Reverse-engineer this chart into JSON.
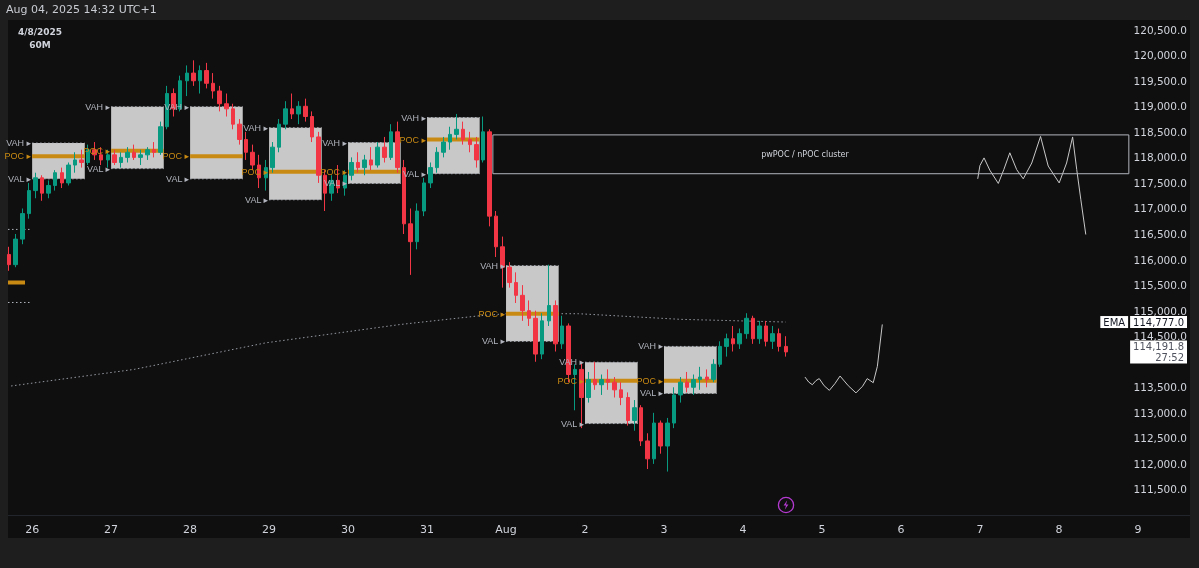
{
  "chart_data": {
    "type": "candlestick",
    "x": [
      "2025-07-25T17:00",
      "2025-07-25T19:00",
      "2025-07-25T21:00",
      "2025-07-25T23:00",
      "2025-07-26T01:00",
      "2025-07-26T03:00",
      "2025-07-26T05:00",
      "2025-07-26T07:00",
      "2025-07-26T09:00",
      "2025-07-26T11:00",
      "2025-07-26T13:00",
      "2025-07-26T15:00",
      "2025-07-26T17:00",
      "2025-07-26T19:00",
      "2025-07-26T21:00",
      "2025-07-26T23:00",
      "2025-07-27T01:00",
      "2025-07-27T03:00",
      "2025-07-27T05:00",
      "2025-07-27T07:00",
      "2025-07-27T09:00",
      "2025-07-27T11:00",
      "2025-07-27T13:00",
      "2025-07-27T15:00",
      "2025-07-27T17:00",
      "2025-07-27T19:00",
      "2025-07-27T21:00",
      "2025-07-27T23:00",
      "2025-07-28T01:00",
      "2025-07-28T03:00",
      "2025-07-28T05:00",
      "2025-07-28T07:00",
      "2025-07-28T09:00",
      "2025-07-28T11:00",
      "2025-07-28T13:00",
      "2025-07-28T15:00",
      "2025-07-28T17:00",
      "2025-07-28T19:00",
      "2025-07-28T21:00",
      "2025-07-28T23:00",
      "2025-07-29T01:00",
      "2025-07-29T03:00",
      "2025-07-29T05:00",
      "2025-07-29T07:00",
      "2025-07-29T09:00",
      "2025-07-29T11:00",
      "2025-07-29T13:00",
      "2025-07-29T15:00",
      "2025-07-29T17:00",
      "2025-07-29T19:00",
      "2025-07-29T21:00",
      "2025-07-29T23:00",
      "2025-07-30T01:00",
      "2025-07-30T03:00",
      "2025-07-30T05:00",
      "2025-07-30T07:00",
      "2025-07-30T09:00",
      "2025-07-30T11:00",
      "2025-07-30T13:00",
      "2025-07-30T15:00",
      "2025-07-30T17:00",
      "2025-07-30T19:00",
      "2025-07-30T21:00",
      "2025-07-30T23:00",
      "2025-07-31T01:00",
      "2025-07-31T03:00",
      "2025-07-31T05:00",
      "2025-07-31T07:00",
      "2025-07-31T09:00",
      "2025-07-31T11:00",
      "2025-07-31T13:00",
      "2025-07-31T15:00",
      "2025-07-31T17:00",
      "2025-07-31T19:00",
      "2025-07-31T21:00",
      "2025-07-31T23:00",
      "2025-08-01T01:00",
      "2025-08-01T03:00",
      "2025-08-01T05:00",
      "2025-08-01T07:00",
      "2025-08-01T09:00",
      "2025-08-01T11:00",
      "2025-08-01T13:00",
      "2025-08-01T15:00",
      "2025-08-01T17:00",
      "2025-08-01T19:00",
      "2025-08-01T21:00",
      "2025-08-01T23:00",
      "2025-08-02T01:00",
      "2025-08-02T03:00",
      "2025-08-02T05:00",
      "2025-08-02T07:00",
      "2025-08-02T09:00",
      "2025-08-02T11:00",
      "2025-08-02T13:00",
      "2025-08-02T15:00",
      "2025-08-02T17:00",
      "2025-08-02T19:00",
      "2025-08-02T21:00",
      "2025-08-02T23:00",
      "2025-08-03T01:00",
      "2025-08-03T03:00",
      "2025-08-03T05:00",
      "2025-08-03T07:00",
      "2025-08-03T09:00",
      "2025-08-03T11:00",
      "2025-08-03T13:00",
      "2025-08-03T15:00",
      "2025-08-03T17:00",
      "2025-08-03T19:00",
      "2025-08-03T21:00",
      "2025-08-03T23:00",
      "2025-08-04T01:00",
      "2025-08-04T03:00",
      "2025-08-04T05:00",
      "2025-08-04T07:00",
      "2025-08-04T09:00",
      "2025-08-04T11:00",
      "2025-08-04T13:00"
    ],
    "ohlc": [
      [
        116100,
        116250,
        115780,
        115900
      ],
      [
        115900,
        116500,
        115850,
        116400
      ],
      [
        116400,
        117000,
        116300,
        116900
      ],
      [
        116900,
        117500,
        116800,
        117350
      ],
      [
        117350,
        117700,
        117200,
        117600
      ],
      [
        117600,
        117650,
        117150,
        117300
      ],
      [
        117300,
        117550,
        117200,
        117450
      ],
      [
        117450,
        117750,
        117350,
        117700
      ],
      [
        117700,
        117800,
        117400,
        117500
      ],
      [
        117500,
        117900,
        117450,
        117850
      ],
      [
        117850,
        118100,
        117700,
        117950
      ],
      [
        117950,
        118150,
        117800,
        117900
      ],
      [
        117900,
        118250,
        117850,
        118150
      ],
      [
        118150,
        118300,
        117950,
        118050
      ],
      [
        118050,
        118200,
        117850,
        117950
      ],
      [
        117950,
        118150,
        117800,
        118050
      ],
      [
        118050,
        118150,
        117850,
        117900
      ],
      [
        117900,
        118100,
        117800,
        118000
      ],
      [
        118000,
        118200,
        117900,
        118100
      ],
      [
        118100,
        118250,
        117950,
        118000
      ],
      [
        118000,
        118150,
        117850,
        118050
      ],
      [
        118050,
        118200,
        117950,
        118150
      ],
      [
        118150,
        118300,
        118000,
        118100
      ],
      [
        118100,
        118700,
        118050,
        118600
      ],
      [
        118600,
        119400,
        118550,
        119250
      ],
      [
        119250,
        119350,
        118800,
        118950
      ],
      [
        118950,
        119600,
        118900,
        119500
      ],
      [
        119500,
        119800,
        119200,
        119650
      ],
      [
        119650,
        119900,
        119400,
        119500
      ],
      [
        119500,
        119800,
        119250,
        119700
      ],
      [
        119700,
        119850,
        119350,
        119450
      ],
      [
        119450,
        119650,
        119150,
        119300
      ],
      [
        119300,
        119400,
        118900,
        119050
      ],
      [
        119050,
        119250,
        118800,
        118950
      ],
      [
        118950,
        119050,
        118550,
        118650
      ],
      [
        118650,
        118750,
        118250,
        118350
      ],
      [
        118350,
        118500,
        117950,
        118100
      ],
      [
        118100,
        118250,
        117750,
        117850
      ],
      [
        117850,
        118050,
        117400,
        117600
      ],
      [
        117600,
        117950,
        117350,
        117800
      ],
      [
        117800,
        118300,
        117700,
        118200
      ],
      [
        118200,
        118750,
        118100,
        118650
      ],
      [
        118650,
        119100,
        118550,
        118950
      ],
      [
        118950,
        119250,
        118750,
        118850
      ],
      [
        118850,
        119100,
        118650,
        119000
      ],
      [
        119000,
        119150,
        118700,
        118800
      ],
      [
        118800,
        118900,
        118300,
        118400
      ],
      [
        118400,
        118500,
        117500,
        117650
      ],
      [
        117650,
        117750,
        116950,
        117300
      ],
      [
        117300,
        117650,
        117150,
        117550
      ],
      [
        117550,
        117850,
        117300,
        117400
      ],
      [
        117400,
        117750,
        117250,
        117650
      ],
      [
        117650,
        118000,
        117550,
        117900
      ],
      [
        117900,
        118100,
        117700,
        117800
      ],
      [
        117800,
        118050,
        117650,
        117950
      ],
      [
        117950,
        118200,
        117750,
        117850
      ],
      [
        117850,
        118300,
        117800,
        118200
      ],
      [
        118200,
        118400,
        117900,
        118000
      ],
      [
        118000,
        118650,
        117950,
        118500
      ],
      [
        118500,
        118700,
        117700,
        117800
      ],
      [
        117800,
        117950,
        116500,
        116700
      ],
      [
        116700,
        117000,
        115700,
        116350
      ],
      [
        116350,
        117100,
        116200,
        116950
      ],
      [
        116950,
        117600,
        116850,
        117500
      ],
      [
        117500,
        117900,
        117400,
        117800
      ],
      [
        117800,
        118200,
        117700,
        118100
      ],
      [
        118100,
        118400,
        118000,
        118300
      ],
      [
        118300,
        118600,
        118150,
        118450
      ],
      [
        118450,
        118850,
        118350,
        118550
      ],
      [
        118550,
        118700,
        118250,
        118350
      ],
      [
        118350,
        118500,
        118100,
        118250
      ],
      [
        118250,
        118400,
        117800,
        117950
      ],
      [
        117950,
        118800,
        117900,
        118500
      ],
      [
        118500,
        118550,
        116650,
        116850
      ],
      [
        116850,
        116950,
        116050,
        116250
      ],
      [
        116250,
        116450,
        115450,
        115850
      ],
      [
        115850,
        115950,
        115450,
        115550
      ],
      [
        115550,
        115750,
        115150,
        115300
      ],
      [
        115300,
        115500,
        114800,
        115000
      ],
      [
        115000,
        115200,
        114700,
        114850
      ],
      [
        114850,
        115000,
        114000,
        114150
      ],
      [
        114150,
        114950,
        114050,
        114800
      ],
      [
        114800,
        115900,
        114700,
        115100
      ],
      [
        115100,
        115200,
        114200,
        114350
      ],
      [
        114350,
        114900,
        114250,
        114700
      ],
      [
        114700,
        114750,
        113600,
        113750
      ],
      [
        113750,
        113950,
        113050,
        113850
      ],
      [
        113850,
        114000,
        112700,
        113300
      ],
      [
        113300,
        113800,
        113200,
        113650
      ],
      [
        113650,
        114000,
        113450,
        113550
      ],
      [
        113550,
        113750,
        113350,
        113650
      ],
      [
        113650,
        113850,
        113450,
        113600
      ],
      [
        113600,
        113700,
        113300,
        113450
      ],
      [
        113450,
        113600,
        113150,
        113300
      ],
      [
        113300,
        113400,
        112750,
        112850
      ],
      [
        112850,
        113250,
        112650,
        113100
      ],
      [
        113100,
        113150,
        112350,
        112450
      ],
      [
        112450,
        112600,
        111900,
        112100
      ],
      [
        112100,
        113000,
        112000,
        112800
      ],
      [
        112800,
        112850,
        112200,
        112350
      ],
      [
        112350,
        112900,
        111850,
        112800
      ],
      [
        112800,
        113500,
        112700,
        113350
      ],
      [
        113350,
        113700,
        113200,
        113600
      ],
      [
        113600,
        113800,
        113400,
        113500
      ],
      [
        113500,
        113750,
        113350,
        113650
      ],
      [
        113650,
        113900,
        113450,
        113700
      ],
      [
        113700,
        113850,
        113500,
        113650
      ],
      [
        113650,
        114050,
        113600,
        113950
      ],
      [
        113950,
        114400,
        113900,
        114300
      ],
      [
        114300,
        114550,
        114100,
        114450
      ],
      [
        114450,
        114700,
        114200,
        114350
      ],
      [
        114350,
        114650,
        114250,
        114550
      ],
      [
        114550,
        114950,
        114450,
        114850
      ],
      [
        114850,
        114900,
        114350,
        114450
      ],
      [
        114450,
        114800,
        114350,
        114700
      ],
      [
        114700,
        114800,
        114300,
        114400
      ],
      [
        114400,
        114700,
        114250,
        114550
      ],
      [
        114550,
        114650,
        114200,
        114300
      ],
      [
        114300,
        114500,
        114100,
        114191.8
      ]
    ],
    "colors": [
      "#f23645",
      "#089981",
      "#089981",
      "#089981",
      "#089981",
      "#f23645",
      "#089981",
      "#089981",
      "#f23645",
      "#089981",
      "#089981",
      "#f23645",
      "#089981",
      "#f23645",
      "#f23645",
      "#089981",
      "#f23645",
      "#089981",
      "#089981",
      "#f23645",
      "#089981",
      "#089981",
      "#f23645",
      "#089981",
      "#089981",
      "#f23645",
      "#089981",
      "#089981",
      "#f23645",
      "#089981",
      "#f23645",
      "#f23645",
      "#f23645",
      "#f23645",
      "#f23645",
      "#f23645",
      "#f23645",
      "#f23645",
      "#f23645",
      "#089981",
      "#089981",
      "#089981",
      "#089981",
      "#f23645",
      "#089981",
      "#f23645",
      "#f23645",
      "#f23645",
      "#f23645",
      "#089981",
      "#f23645",
      "#089981",
      "#089981",
      "#f23645",
      "#089981",
      "#f23645",
      "#089981",
      "#f23645",
      "#089981",
      "#f23645",
      "#f23645",
      "#f23645",
      "#089981",
      "#089981",
      "#089981",
      "#089981",
      "#089981",
      "#089981",
      "#089981",
      "#f23645",
      "#f23645",
      "#f23645",
      "#089981",
      "#f23645",
      "#f23645",
      "#f23645",
      "#f23645",
      "#f23645",
      "#f23645",
      "#f23645",
      "#f23645",
      "#089981",
      "#089981",
      "#f23645",
      "#089981",
      "#f23645",
      "#089981",
      "#f23645",
      "#089981",
      "#f23645",
      "#089981",
      "#f23645",
      "#f23645",
      "#f23645",
      "#f23645",
      "#089981",
      "#f23645",
      "#f23645",
      "#089981",
      "#f23645",
      "#089981",
      "#089981",
      "#089981",
      "#f23645",
      "#089981",
      "#089981",
      "#f23645",
      "#089981",
      "#089981",
      "#089981",
      "#f23645",
      "#089981",
      "#089981",
      "#f23645",
      "#089981",
      "#f23645",
      "#089981",
      "#f23645",
      "#f23645"
    ],
    "xlim": [
      "2025-07-25T16:40",
      "2025-08-09T15:50"
    ],
    "xticks": [
      {
        "value": "2025-07-26",
        "label": "26"
      },
      {
        "value": "2025-07-27",
        "label": "27"
      },
      {
        "value": "2025-07-28",
        "label": "28"
      },
      {
        "value": "2025-07-29",
        "label": "29"
      },
      {
        "value": "2025-07-30",
        "label": "30"
      },
      {
        "value": "2025-07-31",
        "label": "31"
      },
      {
        "value": "2025-08-01",
        "label": "Aug"
      },
      {
        "value": "2025-08-02",
        "label": "2"
      },
      {
        "value": "2025-08-03",
        "label": "3"
      },
      {
        "value": "2025-08-04",
        "label": "4"
      },
      {
        "value": "2025-08-05",
        "label": "5"
      },
      {
        "value": "2025-08-06",
        "label": "6"
      },
      {
        "value": "2025-08-07",
        "label": "7"
      },
      {
        "value": "2025-08-08",
        "label": "8"
      },
      {
        "value": "2025-08-09",
        "label": "9"
      }
    ],
    "ylim": [
      111000,
      120650
    ],
    "yticks": [
      {
        "value": 111500,
        "label": "111,500.0"
      },
      {
        "value": 112000,
        "label": "112,000.0"
      },
      {
        "value": 112500,
        "label": "112,500.0"
      },
      {
        "value": 113000,
        "label": "113,000.0"
      },
      {
        "value": 113500,
        "label": "113,500.0"
      },
      {
        "value": 114191.8,
        "label": "114,191.8\n27:52"
      },
      {
        "value": 114500,
        "label": "114,500.0"
      },
      {
        "value": 114777,
        "label": "114,777.0"
      },
      {
        "value": 115000,
        "label": "115,000.0"
      },
      {
        "value": 115500,
        "label": "115,500.0"
      },
      {
        "value": 116000,
        "label": "116,000.0"
      },
      {
        "value": 116500,
        "label": "116,500.0"
      },
      {
        "value": 117000,
        "label": "117,000.0"
      },
      {
        "value": 117500,
        "label": "117,500.0"
      },
      {
        "value": 118000,
        "label": "118,000.0"
      },
      {
        "value": 118500,
        "label": "118,500.0"
      },
      {
        "value": 119000,
        "label": "119,000.0"
      },
      {
        "value": 119500,
        "label": "119,500.0"
      },
      {
        "value": 120000,
        "label": "120,000.0"
      },
      {
        "value": 120500,
        "label": "120,500.0"
      }
    ],
    "marker": "none",
    "series": [
      {
        "type": "line",
        "name": "EMA",
        "color": "#9598a1",
        "line_style": "dotted",
        "x": [
          "2025-07-25T17:00",
          "2025-07-27T07:00",
          "2025-07-28T23:00",
          "2025-07-30T16:00",
          "2025-07-31T16:00",
          "2025-08-01T00:00",
          "2025-08-01T22:00",
          "2025-08-03T05:00",
          "2025-08-04T13:00"
        ],
        "values": [
          113520,
          113850,
          114370,
          114730,
          114900,
          114940,
          114940,
          114830,
          114777
        ]
      },
      {
        "type": "line",
        "color": "#c8c8c8",
        "line_style": "solid",
        "x": [
          "2025-08-04T18:50",
          "2025-08-04T20:00",
          "2025-08-04T21:05",
          "2025-08-04T22:10",
          "2025-08-04T23:10",
          "2025-08-05T00:40",
          "2025-08-05T02:15",
          "2025-08-05T03:55",
          "2025-08-05T05:30",
          "2025-08-05T08:00",
          "2025-08-05T10:20",
          "2025-08-05T12:20",
          "2025-08-05T13:45",
          "2025-08-05T15:35",
          "2025-08-05T16:50",
          "2025-08-05T18:20"
        ],
        "values": [
          113700,
          113600,
          113550,
          113630,
          113670,
          113530,
          113440,
          113570,
          113720,
          113530,
          113390,
          113520,
          113670,
          113590,
          113910,
          114730
        ]
      },
      {
        "type": "line",
        "color": "#c8c8c8",
        "line_style": "solid",
        "x": [
          "2025-08-06T23:20",
          "2025-08-07T00:00",
          "2025-08-07T01:15",
          "2025-08-07T03:00",
          "2025-08-07T05:35",
          "2025-08-07T07:15",
          "2025-08-07T09:05",
          "2025-08-07T11:10",
          "2025-08-07T13:10",
          "2025-08-07T15:45",
          "2025-08-07T18:25",
          "2025-08-07T20:45",
          "2025-08-08T00:05",
          "2025-08-08T02:20",
          "2025-08-08T04:10",
          "2025-08-08T05:25",
          "2025-08-08T06:40",
          "2025-08-08T08:10"
        ],
        "values": [
          117580,
          117840,
          117990,
          117750,
          117490,
          117760,
          118090,
          117760,
          117580,
          117890,
          118410,
          117830,
          117500,
          117890,
          118400,
          117760,
          117170,
          116490
        ]
      },
      {
        "type": "line",
        "color": "#b2b5be",
        "line_style": "solid",
        "x": [
          "2025-07-31T20:00",
          "2025-08-08T21:15"
        ],
        "values": [
          118440,
          118440
        ]
      },
      {
        "type": "line",
        "color": "#b2b5be",
        "line_style": "solid",
        "x": [
          "2025-07-31T20:00",
          "2025-08-08T21:15"
        ],
        "values": [
          117680,
          117680
        ]
      },
      {
        "type": "line",
        "color": "#b2b5be",
        "line_style": "solid",
        "x": [
          "2025-07-31T20:00",
          "2025-07-31T20:00"
        ],
        "values": [
          117680,
          118440
        ]
      },
      {
        "type": "line",
        "color": "#b2b5be",
        "line_style": "solid",
        "x": [
          "2025-08-08T21:15",
          "2025-08-08T21:15"
        ],
        "values": [
          117680,
          118440
        ]
      },
      {
        "type": "bar",
        "color": "#c8c8c8",
        "x": [
          "2025-07-26T08:00",
          "2025-07-27T08:00",
          "2025-07-28T08:00",
          "2025-07-29T08:00",
          "2025-07-30T08:00",
          "2025-07-31T08:00",
          "2025-08-01T08:00",
          "2025-08-02T08:00",
          "2025-08-03T08:00"
        ],
        "base": [
          117580,
          117780,
          117580,
          117170,
          117490,
          117680,
          114400,
          112790,
          113380
        ],
        "values": [
          700,
          1210,
          1410,
          1410,
          800,
          1100,
          1480,
          1200,
          920
        ]
      },
      {
        "type": "line",
        "color": "#c98a13",
        "line_style": "solid",
        "x": [
          "2025-07-25T16:40",
          "2025-07-25T21:50",
          "2025-07-25T23:00",
          "2025-07-26T00:00",
          "2025-07-26T16:00",
          "2025-07-26T20:00",
          "2025-07-27T00:00",
          "2025-07-27T16:00",
          "2025-07-27T20:00",
          "2025-07-28T00:00",
          "2025-07-28T16:00",
          "2025-07-28T20:00",
          "2025-07-29T00:00",
          "2025-07-29T16:00",
          "2025-07-29T20:00",
          "2025-07-30T00:00",
          "2025-07-30T16:00",
          "2025-07-30T20:00",
          "2025-07-31T00:00",
          "2025-07-31T16:00",
          "2025-07-31T20:00",
          "2025-08-01T00:00",
          "2025-08-01T16:00",
          "2025-08-01T20:00",
          "2025-08-02T00:00",
          "2025-08-02T16:00",
          "2025-08-02T20:00",
          "2025-08-03T00:00",
          "2025-08-03T16:00"
        ],
        "values": [
          115550,
          115550,
          null,
          118020,
          118020,
          null,
          118130,
          118130,
          null,
          118020,
          118020,
          null,
          117720,
          117720,
          null,
          117720,
          117720,
          null,
          118350,
          118350,
          null,
          114940,
          114940,
          null,
          113630,
          113630,
          null,
          113630,
          113630
        ]
      },
      {
        "type": "line",
        "color": "#b2b5be",
        "line_style": "dotted",
        "x": [
          "2025-07-25T16:40",
          "2025-07-25T23:30",
          "2025-07-25T23:45",
          "2025-07-26T00:00",
          "2025-07-26T16:00",
          "2025-07-26T20:00",
          "2025-07-27T00:00",
          "2025-07-27T16:00",
          "2025-07-27T20:00",
          "2025-07-28T00:00",
          "2025-07-28T16:00",
          "2025-07-28T20:00",
          "2025-07-29T00:00",
          "2025-07-29T16:00",
          "2025-07-29T20:00",
          "2025-07-30T00:00",
          "2025-07-30T16:00",
          "2025-07-30T20:00",
          "2025-07-31T00:00",
          "2025-07-31T16:00",
          "2025-07-31T20:00",
          "2025-08-01T00:00",
          "2025-08-01T16:00",
          "2025-08-01T20:00",
          "2025-08-02T00:00",
          "2025-08-02T16:00",
          "2025-08-02T20:00",
          "2025-08-03T00:00",
          "2025-08-03T16:00"
        ],
        "values": [
          116590,
          116590,
          null,
          118280,
          118280,
          null,
          118990,
          118990,
          null,
          118990,
          118990,
          null,
          118580,
          118580,
          null,
          118290,
          118290,
          null,
          118780,
          118780,
          null,
          115880,
          115880,
          null,
          113990,
          113990,
          null,
          114300,
          114300
        ]
      },
      {
        "type": "line",
        "color": "#b2b5be",
        "line_style": "dotted",
        "x": [
          "2025-07-25T16:40",
          "2025-07-25T23:30",
          "2025-07-25T23:45",
          "2025-07-26T00:00",
          "2025-07-26T16:00",
          "2025-07-26T20:00",
          "2025-07-27T00:00",
          "2025-07-27T16:00",
          "2025-07-27T20:00",
          "2025-07-28T00:00",
          "2025-07-28T16:00",
          "2025-07-28T20:00",
          "2025-07-29T00:00",
          "2025-07-29T16:00",
          "2025-07-29T20:00",
          "2025-07-30T00:00",
          "2025-07-30T16:00",
          "2025-07-30T20:00",
          "2025-07-31T00:00",
          "2025-07-31T16:00",
          "2025-07-31T20:00",
          "2025-08-01T00:00",
          "2025-08-01T16:00",
          "2025-08-01T20:00",
          "2025-08-02T00:00",
          "2025-08-02T16:00",
          "2025-08-02T20:00",
          "2025-08-03T00:00",
          "2025-08-03T16:00"
        ],
        "values": [
          115160,
          115160,
          null,
          117580,
          117580,
          null,
          117780,
          117780,
          null,
          117580,
          117580,
          null,
          117170,
          117170,
          null,
          117490,
          117490,
          null,
          117680,
          117680,
          null,
          114400,
          114400,
          null,
          112790,
          112790,
          null,
          113380,
          113380
        ]
      }
    ],
    "annotations": [
      "Aug 04, 2025 14:32 UTC+1",
      "4/8/2025",
      "60M",
      {
        "text": "VAH ▸",
        "x": "2025-07-26",
        "y": 118280
      },
      {
        "text": "POC ▸",
        "x": "2025-07-26",
        "y": 118020
      },
      {
        "text": "VAL ▸",
        "x": "2025-07-26",
        "y": 117580
      },
      {
        "text": "VAH ▸",
        "x": "2025-07-27",
        "y": 118990
      },
      {
        "text": "POC ▸",
        "x": "2025-07-27",
        "y": 118130
      },
      {
        "text": "VAL ▸",
        "x": "2025-07-27",
        "y": 117780
      },
      {
        "text": "VAH ▸",
        "x": "2025-07-28",
        "y": 118990
      },
      {
        "text": "POC ▸",
        "x": "2025-07-28",
        "y": 118020
      },
      {
        "text": "VAL ▸",
        "x": "2025-07-28",
        "y": 117580
      },
      {
        "text": "VAH ▸",
        "x": "2025-07-29",
        "y": 118580
      },
      {
        "text": "POC ▸",
        "x": "2025-07-29",
        "y": 117720
      },
      {
        "text": "VAL ▸",
        "x": "2025-07-29",
        "y": 117170
      },
      {
        "text": "VAH ▸",
        "x": "2025-07-30",
        "y": 118290
      },
      {
        "text": "POC ▸",
        "x": "2025-07-30",
        "y": 117720
      },
      {
        "text": "VAL ▸",
        "x": "2025-07-30",
        "y": 117490
      },
      {
        "text": "VAH ▸",
        "x": "2025-07-31",
        "y": 118780
      },
      {
        "text": "POC ▸",
        "x": "2025-07-31",
        "y": 118350
      },
      {
        "text": "VAL ▸",
        "x": "2025-07-31",
        "y": 117680
      },
      {
        "text": "VAH ▸",
        "x": "2025-08-01",
        "y": 115880
      },
      {
        "text": "POC ▸",
        "x": "2025-08-01",
        "y": 114940
      },
      {
        "text": "VAL ▸",
        "x": "2025-08-01",
        "y": 114400
      },
      {
        "text": "VAH ▸",
        "x": "2025-08-02",
        "y": 113990
      },
      {
        "text": "POC ▸",
        "x": "2025-08-02",
        "y": 113630
      },
      {
        "text": "VAL ▸",
        "x": "2025-08-02",
        "y": 112790
      },
      {
        "text": "VAH ▸",
        "x": "2025-08-03",
        "y": 114300
      },
      {
        "text": "POC ▸",
        "x": "2025-08-03",
        "y": 113630
      },
      {
        "text": "VAL ▸",
        "x": "2025-08-03",
        "y": 113380
      },
      {
        "text": "pwPOC / nPOC cluster",
        "x": "2025-08-04T18:50",
        "y": 118440
      }
    ]
  }
}
